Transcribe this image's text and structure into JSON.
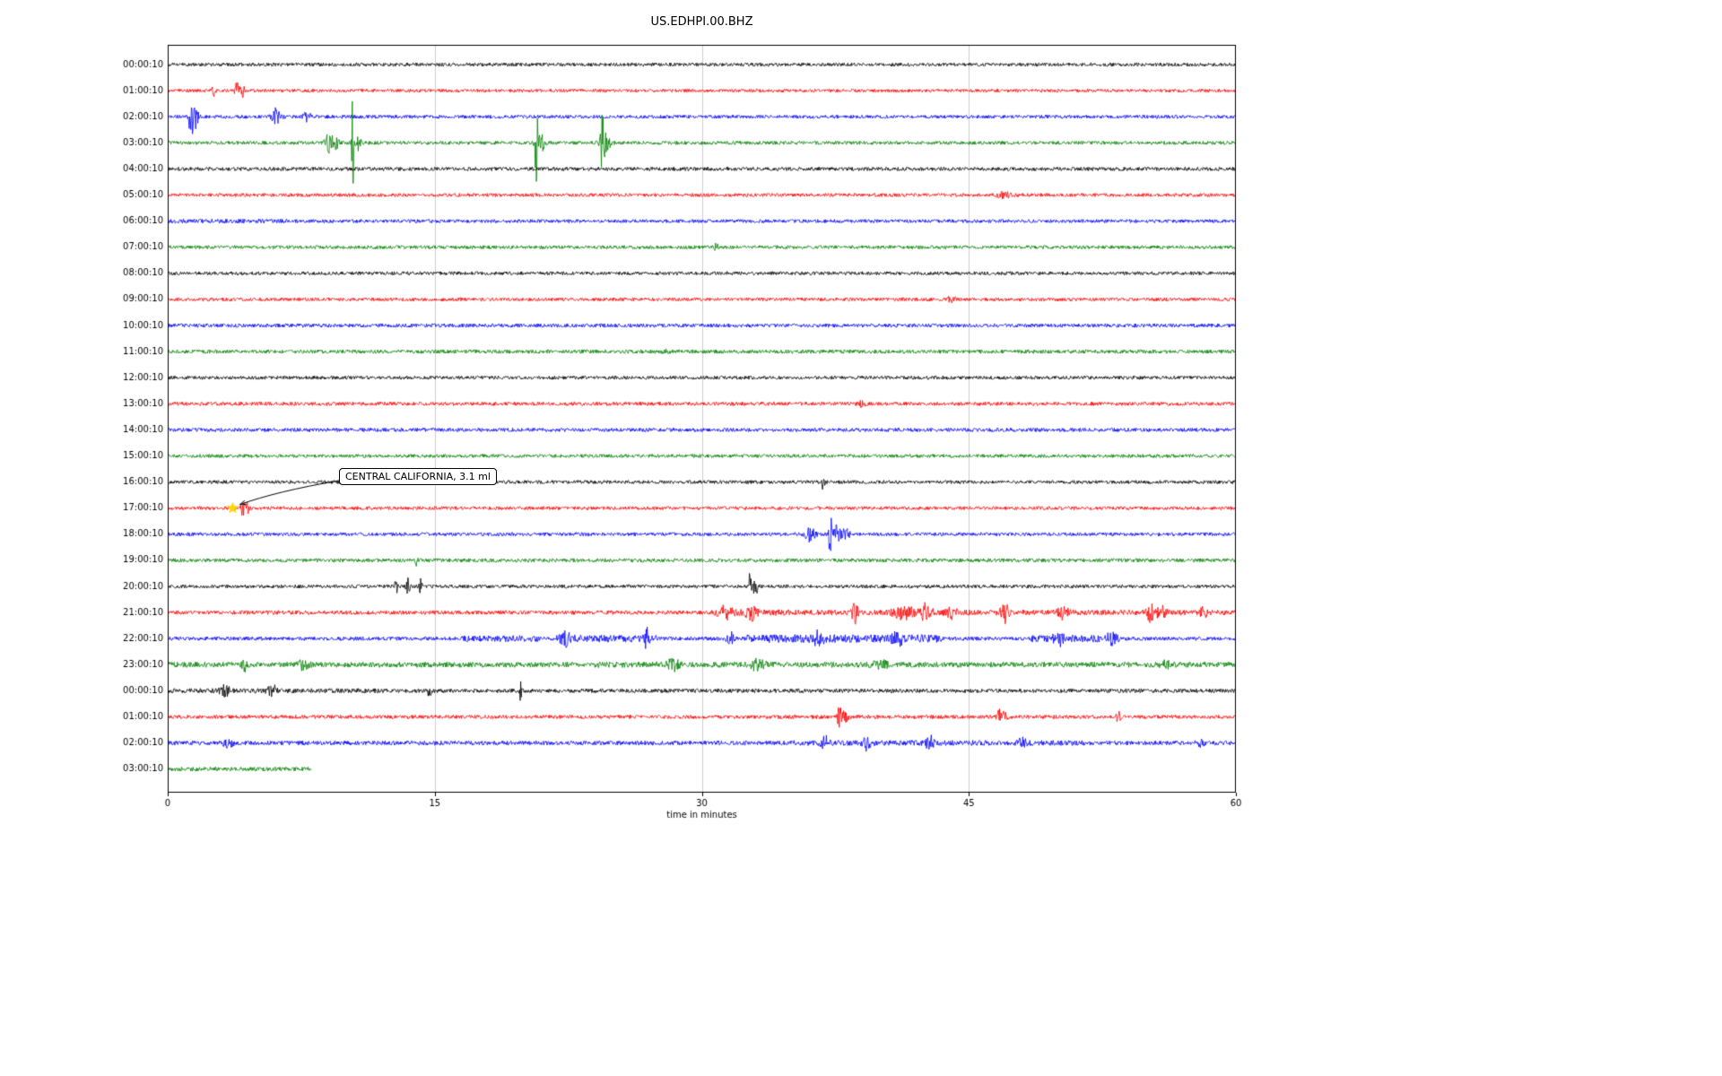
{
  "page": {
    "title": "US.EDHPI.00.BHZ"
  },
  "annotation": {
    "label": "CENTRAL CALIFORNIA, 3.1 ml"
  },
  "chart_data": {
    "type": "line",
    "subtype": "seismogram-dayplot",
    "title": "US.EDHPI.00.BHZ",
    "xlabel": "time in minutes",
    "xlim": [
      0,
      60
    ],
    "xticks": [
      0,
      15,
      30,
      45,
      60
    ],
    "grid": {
      "vertical_at": [
        15,
        30,
        45
      ],
      "color": "#cccccc"
    },
    "colors": {
      "black": "#000000",
      "red": "#ff0000",
      "blue": "#0000ff",
      "green": "#008000"
    },
    "annotation": {
      "text": "CENTRAL CALIFORNIA, 3.1 ml",
      "row_index": 17,
      "minute": 3.65,
      "marker": "yellow-star",
      "marker_color": "#ffd400"
    },
    "rows": [
      {
        "label": "00:00:10",
        "color": "black",
        "noise": 1.3,
        "events": [],
        "sections": []
      },
      {
        "label": "01:00:10",
        "color": "red",
        "noise": 1.2,
        "events": [
          [
            2.6,
            6,
            0.1
          ],
          [
            3.9,
            10,
            0.12
          ],
          [
            4.2,
            8,
            0.1
          ]
        ],
        "sections": []
      },
      {
        "label": "02:00:10",
        "color": "blue",
        "noise": 1.3,
        "events": [
          [
            1.3,
            40,
            0.1
          ],
          [
            1.5,
            14,
            0.2
          ],
          [
            6.1,
            9,
            0.25
          ],
          [
            7.8,
            7,
            0.2
          ]
        ],
        "sections": []
      },
      {
        "label": "03:00:10",
        "color": "green",
        "noise": 1.3,
        "events": [
          [
            9.1,
            11,
            0.25
          ],
          [
            9.4,
            8,
            0.2
          ],
          [
            10.4,
            62,
            0.07
          ],
          [
            10.6,
            12,
            0.2
          ],
          [
            20.7,
            46,
            0.08
          ],
          [
            20.95,
            12,
            0.25
          ],
          [
            24.4,
            26,
            0.1
          ],
          [
            24.6,
            12,
            0.25
          ]
        ],
        "sections": []
      },
      {
        "label": "04:00:10",
        "color": "black",
        "noise": 1.4,
        "events": [],
        "sections": []
      },
      {
        "label": "05:00:10",
        "color": "red",
        "noise": 1.3,
        "events": [
          [
            47.0,
            3,
            0.4
          ]
        ],
        "sections": []
      },
      {
        "label": "06:00:10",
        "color": "blue",
        "noise": 1.3,
        "events": [],
        "sections": [
          [
            0,
            7,
            2.4
          ]
        ]
      },
      {
        "label": "07:00:10",
        "color": "green",
        "noise": 1.3,
        "events": [
          [
            30.8,
            3,
            0.2
          ]
        ],
        "sections": []
      },
      {
        "label": "08:00:10",
        "color": "black",
        "noise": 1.3,
        "events": [],
        "sections": []
      },
      {
        "label": "09:00:10",
        "color": "red",
        "noise": 1.3,
        "events": [
          [
            44,
            2.5,
            0.3
          ]
        ],
        "sections": []
      },
      {
        "label": "10:00:10",
        "color": "blue",
        "noise": 1.4,
        "events": [],
        "sections": []
      },
      {
        "label": "11:00:10",
        "color": "green",
        "noise": 1.4,
        "events": [
          [
            28,
            2.5,
            0.2
          ]
        ],
        "sections": []
      },
      {
        "label": "12:00:10",
        "color": "black",
        "noise": 1.3,
        "events": [],
        "sections": []
      },
      {
        "label": "13:00:10",
        "color": "red",
        "noise": 1.4,
        "events": [
          [
            39,
            3,
            0.2
          ]
        ],
        "sections": []
      },
      {
        "label": "14:00:10",
        "color": "blue",
        "noise": 1.4,
        "events": [],
        "sections": []
      },
      {
        "label": "15:00:10",
        "color": "green",
        "noise": 1.3,
        "events": [],
        "sections": []
      },
      {
        "label": "16:00:10",
        "color": "black",
        "noise": 1.3,
        "events": [
          [
            36.8,
            8,
            0.12
          ]
        ],
        "sections": []
      },
      {
        "label": "17:00:10",
        "color": "red",
        "noise": 1.3,
        "events": [
          [
            4.2,
            8,
            0.12
          ],
          [
            4.5,
            6,
            0.12
          ]
        ],
        "sections": []
      },
      {
        "label": "18:00:10",
        "color": "blue",
        "noise": 1.3,
        "events": [
          [
            36.1,
            9,
            0.25
          ],
          [
            37.2,
            30,
            0.07
          ],
          [
            37.5,
            10,
            0.3
          ],
          [
            38.1,
            6,
            0.2
          ]
        ],
        "sections": []
      },
      {
        "label": "19:00:10",
        "color": "green",
        "noise": 1.4,
        "events": [
          [
            14.0,
            6,
            0.08
          ]
        ],
        "sections": []
      },
      {
        "label": "20:00:10",
        "color": "black",
        "noise": 1.3,
        "events": [
          [
            12.8,
            10,
            0.1
          ],
          [
            13.5,
            9,
            0.1
          ],
          [
            14.2,
            8,
            0.08
          ],
          [
            32.7,
            14,
            0.08
          ],
          [
            33.0,
            9,
            0.15
          ]
        ],
        "sections": []
      },
      {
        "label": "21:00:10",
        "color": "red",
        "noise": 1.5,
        "events": [
          [
            31.3,
            6,
            0.4
          ],
          [
            32.8,
            8,
            0.3
          ],
          [
            38.6,
            12,
            0.15
          ],
          [
            41.3,
            7,
            0.6
          ],
          [
            42.6,
            9,
            0.3
          ],
          [
            44,
            6,
            0.3
          ],
          [
            47.0,
            10,
            0.25
          ],
          [
            50.3,
            6,
            0.3
          ],
          [
            55.2,
            10,
            0.2
          ],
          [
            55.8,
            7,
            0.25
          ],
          [
            58.2,
            5,
            0.2
          ]
        ],
        "sections": [
          [
            30.5,
            35,
            3.5
          ],
          [
            35,
            60,
            3
          ]
        ]
      },
      {
        "label": "22:00:10",
        "color": "blue",
        "noise": 1.4,
        "events": [
          [
            22.3,
            7,
            0.3
          ],
          [
            26.9,
            11,
            0.12
          ],
          [
            31.6,
            7,
            0.2
          ],
          [
            36.6,
            7,
            0.3
          ],
          [
            41,
            6,
            0.3
          ],
          [
            50.1,
            6,
            0.3
          ],
          [
            53,
            5,
            0.3
          ]
        ],
        "sections": [
          [
            16.5,
            21,
            3.5
          ],
          [
            21.8,
            27.5,
            4
          ],
          [
            32.5,
            43.5,
            4.5
          ],
          [
            48.5,
            53.5,
            4
          ]
        ]
      },
      {
        "label": "23:00:10",
        "color": "green",
        "noise": 2.0,
        "events": [
          [
            4.3,
            10,
            0.1
          ],
          [
            7.6,
            5,
            0.3
          ],
          [
            28.4,
            6,
            0.3
          ],
          [
            33.1,
            5,
            0.4
          ],
          [
            40,
            4,
            0.4
          ],
          [
            56,
            3.5,
            0.3
          ]
        ],
        "sections": [
          [
            9,
            21,
            2.8
          ],
          [
            24,
            35,
            3.2
          ],
          [
            36,
            44,
            3
          ]
        ]
      },
      {
        "label": "00:00:10",
        "color": "black",
        "noise": 1.5,
        "events": [
          [
            3.2,
            5,
            0.3
          ],
          [
            5.9,
            5,
            0.3
          ],
          [
            14.7,
            14,
            0.07
          ],
          [
            19.8,
            14,
            0.07
          ]
        ],
        "sections": [
          [
            0,
            12,
            2.6
          ]
        ]
      },
      {
        "label": "01:00:10",
        "color": "red",
        "noise": 1.4,
        "events": [
          [
            37.7,
            10,
            0.15
          ],
          [
            38,
            7,
            0.2
          ],
          [
            46.7,
            9,
            0.12
          ],
          [
            47,
            5,
            0.2
          ],
          [
            53.4,
            7,
            0.1
          ]
        ],
        "sections": []
      },
      {
        "label": "02:00:10",
        "color": "blue",
        "noise": 1.6,
        "events": [
          [
            3.4,
            5,
            0.25
          ],
          [
            36.9,
            8,
            0.2
          ],
          [
            39.3,
            8,
            0.2
          ],
          [
            42.8,
            8,
            0.2
          ],
          [
            48,
            7,
            0.2
          ],
          [
            58,
            4,
            0.2
          ]
        ],
        "sections": [
          [
            35,
            52,
            3
          ]
        ]
      },
      {
        "label": "03:00:10",
        "color": "green",
        "noise": 1.6,
        "events": [],
        "sections": [],
        "extent": 8.1
      }
    ]
  }
}
